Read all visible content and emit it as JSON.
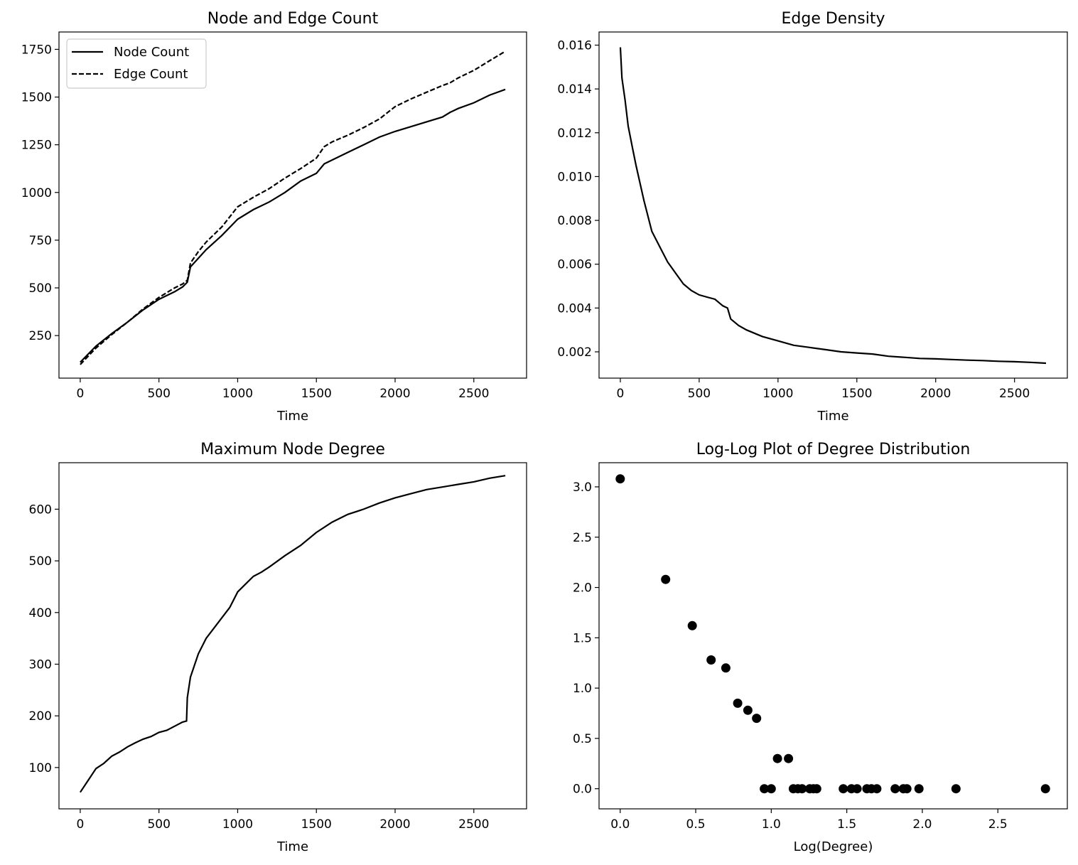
{
  "chart_data": [
    {
      "type": "line",
      "title": "Node and Edge Count",
      "xlabel": "Time",
      "ylabel": "",
      "xlim": [
        -135,
        2835
      ],
      "ylim": [
        27,
        1841
      ],
      "xticks": [
        0,
        500,
        1000,
        1500,
        2000,
        2500
      ],
      "yticks": [
        250,
        500,
        750,
        1000,
        1250,
        1500,
        1750
      ],
      "legend": "top-left",
      "grid": false,
      "series": [
        {
          "name": "Node Count",
          "style": "solid",
          "x": [
            0,
            100,
            200,
            300,
            400,
            500,
            600,
            650,
            680,
            700,
            750,
            800,
            900,
            1000,
            1100,
            1200,
            1300,
            1400,
            1500,
            1550,
            1600,
            1700,
            1800,
            1900,
            2000,
            2100,
            2200,
            2300,
            2350,
            2400,
            2500,
            2600,
            2700
          ],
          "values": [
            110,
            195,
            260,
            320,
            385,
            440,
            480,
            505,
            530,
            610,
            655,
            700,
            775,
            860,
            910,
            950,
            1000,
            1060,
            1100,
            1150,
            1170,
            1210,
            1250,
            1290,
            1320,
            1345,
            1370,
            1395,
            1420,
            1440,
            1470,
            1510,
            1540
          ]
        },
        {
          "name": "Edge Count",
          "style": "dashed",
          "x": [
            0,
            100,
            200,
            300,
            400,
            500,
            600,
            650,
            680,
            700,
            750,
            800,
            900,
            1000,
            1100,
            1200,
            1300,
            1400,
            1500,
            1550,
            1600,
            1700,
            1800,
            1900,
            2000,
            2100,
            2200,
            2300,
            2350,
            2400,
            2500,
            2600,
            2700
          ],
          "values": [
            98,
            185,
            255,
            320,
            390,
            450,
            500,
            520,
            540,
            630,
            690,
            740,
            820,
            925,
            975,
            1020,
            1075,
            1125,
            1180,
            1240,
            1265,
            1300,
            1340,
            1385,
            1450,
            1490,
            1525,
            1560,
            1575,
            1600,
            1640,
            1690,
            1740
          ]
        }
      ]
    },
    {
      "type": "line",
      "title": "Edge Density",
      "xlabel": "Time",
      "ylabel": "",
      "xlim": [
        -135,
        2835
      ],
      "ylim": [
        0.0008,
        0.0166
      ],
      "xticks": [
        0,
        500,
        1000,
        1500,
        2000,
        2500
      ],
      "yticks": [
        "0.002",
        "0.004",
        "0.006",
        "0.008",
        "0.010",
        "0.012",
        "0.014",
        "0.016"
      ],
      "grid": false,
      "series": [
        {
          "style": "solid",
          "x": [
            0,
            10,
            30,
            50,
            80,
            100,
            150,
            200,
            250,
            300,
            350,
            400,
            450,
            500,
            550,
            600,
            650,
            680,
            700,
            750,
            800,
            900,
            1000,
            1100,
            1200,
            1300,
            1400,
            1500,
            1600,
            1700,
            1800,
            1900,
            2000,
            2100,
            2200,
            2300,
            2400,
            2500,
            2600,
            2700
          ],
          "values": [
            0.0159,
            0.0145,
            0.0135,
            0.0123,
            0.0112,
            0.0105,
            0.0089,
            0.0075,
            0.0068,
            0.0061,
            0.0056,
            0.0051,
            0.0048,
            0.0046,
            0.0045,
            0.0044,
            0.0041,
            0.004,
            0.0035,
            0.0032,
            0.003,
            0.0027,
            0.0025,
            0.0023,
            0.0022,
            0.0021,
            0.002,
            0.00195,
            0.0019,
            0.0018,
            0.00175,
            0.0017,
            0.00168,
            0.00165,
            0.00162,
            0.0016,
            0.00157,
            0.00155,
            0.00152,
            0.00148
          ]
        }
      ]
    },
    {
      "type": "line",
      "title": "Maximum Node Degree",
      "xlabel": "Time",
      "ylabel": "",
      "xlim": [
        -135,
        2835
      ],
      "ylim": [
        20,
        690
      ],
      "xticks": [
        0,
        500,
        1000,
        1500,
        2000,
        2500
      ],
      "yticks": [
        100,
        200,
        300,
        400,
        500,
        600
      ],
      "grid": false,
      "series": [
        {
          "style": "solid",
          "x": [
            0,
            50,
            100,
            150,
            200,
            250,
            300,
            350,
            400,
            450,
            500,
            550,
            600,
            650,
            675,
            680,
            700,
            750,
            800,
            850,
            900,
            950,
            1000,
            1050,
            1100,
            1150,
            1200,
            1300,
            1400,
            1500,
            1600,
            1700,
            1800,
            1900,
            2000,
            2100,
            2200,
            2300,
            2400,
            2500,
            2600,
            2700
          ],
          "values": [
            52,
            75,
            98,
            108,
            122,
            130,
            140,
            148,
            155,
            160,
            168,
            172,
            180,
            188,
            190,
            235,
            275,
            320,
            350,
            370,
            390,
            410,
            440,
            455,
            470,
            478,
            488,
            510,
            530,
            555,
            575,
            590,
            600,
            612,
            622,
            630,
            638,
            643,
            648,
            653,
            660,
            665
          ]
        }
      ]
    },
    {
      "type": "scatter",
      "title": "Log-Log Plot of Degree Distribution",
      "xlabel": "Log(Degree)",
      "ylabel": "",
      "xlim": [
        -0.14,
        2.96
      ],
      "ylim": [
        -0.2,
        3.24
      ],
      "xticks": [
        "0.0",
        "0.5",
        "1.0",
        "1.5",
        "2.0",
        "2.5"
      ],
      "yticks": [
        "0.0",
        "0.5",
        "1.0",
        "1.5",
        "2.0",
        "2.5",
        "3.0"
      ],
      "grid": false,
      "points": {
        "x": [
          0.0,
          0.301,
          0.477,
          0.602,
          0.699,
          0.778,
          0.845,
          0.903,
          0.954,
          1.0,
          1.041,
          1.114,
          1.146,
          1.176,
          1.204,
          1.255,
          1.279,
          1.301,
          1.477,
          1.531,
          1.568,
          1.633,
          1.663,
          1.699,
          1.82,
          1.875,
          1.898,
          1.978,
          2.223,
          2.815
        ],
        "y": [
          3.08,
          2.08,
          1.62,
          1.28,
          1.2,
          0.85,
          0.78,
          0.7,
          0.0,
          0.0,
          0.3,
          0.3,
          0.0,
          0.0,
          0.0,
          0.0,
          0.0,
          0.0,
          0.0,
          0.0,
          0.0,
          0.0,
          0.0,
          0.0,
          0.0,
          0.0,
          0.0,
          0.0,
          0.0,
          0.0
        ]
      }
    }
  ]
}
